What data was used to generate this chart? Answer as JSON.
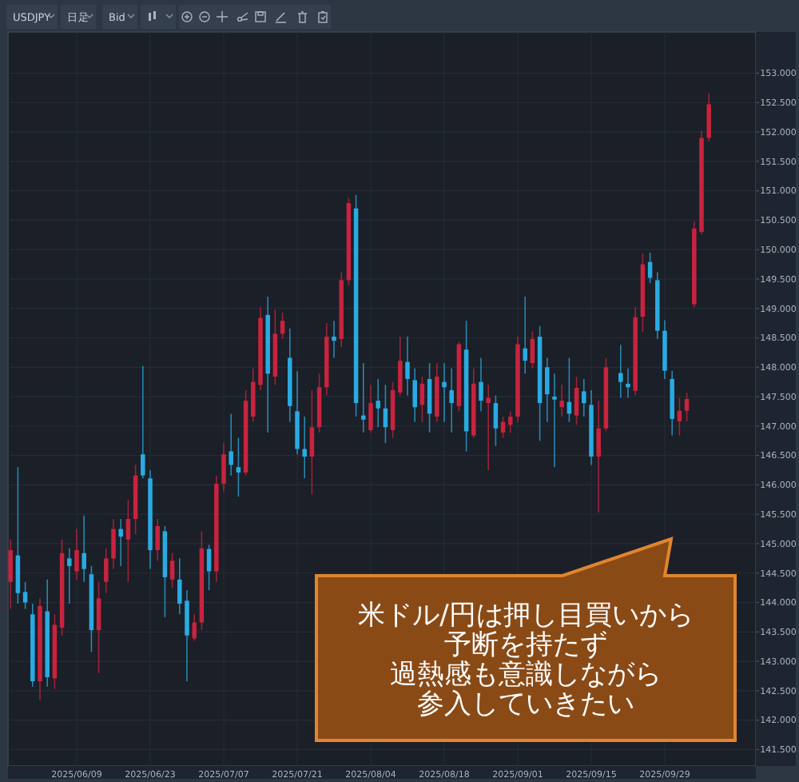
{
  "chart_data": {
    "type": "candlestick",
    "categories": [
      null,
      null,
      null,
      null,
      null,
      null,
      null,
      null,
      null,
      "2025/06/09",
      null,
      null,
      null,
      null,
      null,
      null,
      null,
      null,
      null,
      "2025/06/23",
      null,
      null,
      null,
      null,
      null,
      null,
      null,
      null,
      null,
      "2025/07/07",
      null,
      null,
      null,
      null,
      null,
      null,
      null,
      null,
      null,
      "2025/07/21",
      null,
      null,
      null,
      null,
      null,
      null,
      null,
      null,
      null,
      "2025/08/04",
      null,
      null,
      null,
      null,
      null,
      null,
      null,
      null,
      null,
      "2025/08/18",
      null,
      null,
      null,
      null,
      null,
      null,
      null,
      null,
      null,
      "2025/09/01",
      null,
      null,
      null,
      null,
      null,
      null,
      null,
      null,
      null,
      "2025/09/15",
      null,
      null,
      null,
      null,
      null,
      null,
      null,
      null,
      null,
      "2025/09/29",
      null,
      null,
      null,
      null,
      null,
      null
    ],
    "ohlc": [
      [
        144.35,
        145.07,
        143.89,
        144.89
      ],
      [
        144.8,
        146.3,
        143.98,
        144.16
      ],
      [
        144.18,
        144.35,
        143.89,
        144.0
      ],
      [
        143.8,
        143.98,
        142.57,
        142.66
      ],
      [
        142.66,
        144.07,
        142.35,
        143.94
      ],
      [
        143.85,
        144.39,
        142.57,
        142.73
      ],
      [
        142.71,
        143.8,
        142.53,
        143.62
      ],
      [
        143.57,
        145.07,
        143.44,
        144.84
      ],
      [
        144.75,
        144.92,
        143.98,
        144.62
      ],
      [
        144.53,
        145.25,
        144.39,
        144.89
      ],
      [
        144.84,
        145.48,
        144.35,
        144.57
      ],
      [
        144.48,
        144.62,
        143.16,
        143.53
      ],
      [
        143.53,
        144.35,
        142.8,
        144.07
      ],
      [
        144.35,
        144.92,
        144.16,
        144.75
      ],
      [
        144.75,
        145.42,
        144.57,
        145.25
      ],
      [
        145.25,
        145.42,
        144.62,
        145.12
      ],
      [
        145.07,
        145.75,
        144.35,
        145.42
      ],
      [
        145.42,
        146.34,
        145.16,
        146.16
      ],
      [
        146.52,
        148.02,
        146.11,
        146.16
      ],
      [
        146.11,
        146.25,
        144.57,
        144.89
      ],
      [
        144.89,
        145.42,
        144.71,
        145.3
      ],
      [
        145.21,
        145.3,
        143.75,
        144.43
      ],
      [
        144.39,
        144.84,
        144.25,
        144.71
      ],
      [
        144.39,
        144.75,
        143.8,
        143.98
      ],
      [
        144.03,
        144.21,
        142.66,
        143.44
      ],
      [
        143.39,
        143.8,
        143.35,
        143.66
      ],
      [
        143.66,
        145.21,
        143.53,
        144.92
      ],
      [
        144.91,
        144.98,
        144.21,
        144.53
      ],
      [
        144.53,
        146.16,
        144.35,
        146.02
      ],
      [
        146.02,
        146.71,
        145.89,
        146.52
      ],
      [
        146.57,
        147.21,
        146.16,
        146.34
      ],
      [
        146.3,
        146.8,
        145.8,
        146.21
      ],
      [
        146.21,
        147.61,
        146.16,
        147.43
      ],
      [
        147.16,
        147.98,
        147.07,
        147.75
      ],
      [
        147.7,
        149.02,
        147.61,
        148.84
      ],
      [
        148.89,
        149.2,
        146.89,
        147.89
      ],
      [
        147.84,
        148.98,
        147.7,
        148.57
      ],
      [
        148.57,
        148.93,
        148.48,
        148.79
      ],
      [
        148.16,
        148.66,
        147.07,
        147.34
      ],
      [
        147.25,
        147.93,
        146.52,
        146.61
      ],
      [
        146.61,
        147.16,
        146.11,
        146.48
      ],
      [
        146.48,
        147.61,
        145.84,
        146.98
      ],
      [
        146.98,
        147.89,
        146.89,
        147.66
      ],
      [
        147.66,
        148.75,
        147.52,
        148.52
      ],
      [
        148.52,
        148.79,
        148.16,
        148.45
      ],
      [
        148.48,
        149.61,
        148.34,
        149.48
      ],
      [
        149.48,
        150.88,
        149.39,
        150.79
      ],
      [
        150.7,
        150.93,
        147.16,
        147.39
      ],
      [
        147.18,
        148.07,
        146.89,
        147.11
      ],
      [
        146.93,
        147.7,
        146.89,
        147.39
      ],
      [
        147.43,
        147.8,
        146.98,
        147.3
      ],
      [
        147.3,
        147.7,
        146.71,
        146.98
      ],
      [
        146.93,
        147.75,
        146.8,
        147.61
      ],
      [
        147.57,
        148.52,
        147.52,
        148.11
      ],
      [
        148.09,
        148.52,
        147.52,
        147.8
      ],
      [
        147.78,
        147.98,
        147.07,
        147.32
      ],
      [
        147.36,
        147.84,
        147.07,
        147.72
      ],
      [
        147.8,
        148.07,
        146.89,
        147.21
      ],
      [
        147.16,
        148.07,
        147.07,
        147.84
      ],
      [
        147.75,
        148.07,
        147.07,
        147.66
      ],
      [
        147.61,
        147.98,
        146.89,
        147.39
      ],
      [
        147.34,
        148.43,
        147.25,
        148.39
      ],
      [
        148.3,
        148.79,
        146.57,
        146.91
      ],
      [
        146.84,
        147.98,
        146.8,
        147.72
      ],
      [
        147.75,
        148.16,
        147.25,
        147.43
      ],
      [
        147.39,
        147.7,
        146.25,
        147.48
      ],
      [
        147.39,
        147.52,
        146.66,
        146.96
      ],
      [
        146.89,
        147.16,
        146.8,
        147.07
      ],
      [
        147.02,
        147.25,
        146.89,
        147.16
      ],
      [
        147.16,
        148.52,
        147.07,
        148.39
      ],
      [
        148.32,
        149.2,
        147.89,
        148.11
      ],
      [
        148.07,
        148.61,
        147.98,
        148.48
      ],
      [
        148.52,
        148.7,
        146.75,
        147.39
      ],
      [
        148.0,
        148.16,
        147.07,
        147.54
      ],
      [
        147.5,
        147.89,
        146.3,
        147.45
      ],
      [
        147.32,
        147.7,
        147.16,
        147.43
      ],
      [
        147.41,
        148.16,
        147.07,
        147.21
      ],
      [
        147.18,
        147.84,
        147.02,
        147.65
      ],
      [
        147.59,
        147.8,
        147.16,
        147.39
      ],
      [
        147.36,
        147.61,
        146.34,
        146.48
      ],
      [
        146.48,
        147.43,
        145.53,
        146.96
      ],
      [
        146.96,
        148.16,
        146.91,
        148.0
      ],
      null,
      [
        147.9,
        148.38,
        147.48,
        147.75
      ],
      [
        147.72,
        147.98,
        147.48,
        147.66
      ],
      [
        147.6,
        149.02,
        147.52,
        148.85
      ],
      [
        148.86,
        149.93,
        148.6,
        149.75
      ],
      [
        149.79,
        149.95,
        149.43,
        149.52
      ],
      [
        149.48,
        149.61,
        148.48,
        148.62
      ],
      [
        148.62,
        148.8,
        147.8,
        147.94
      ],
      [
        147.8,
        147.94,
        146.84,
        147.12
      ],
      [
        147.08,
        147.48,
        146.84,
        147.26
      ],
      [
        147.26,
        147.57,
        147.08,
        147.46
      ],
      [
        149.07,
        150.48,
        149.02,
        150.36
      ],
      [
        150.3,
        152.02,
        150.26,
        151.9
      ],
      [
        151.9,
        152.66,
        151.84,
        152.47
      ]
    ],
    "colors": [
      "#c8233f",
      "#2aaae2",
      "#2aaae2",
      "#2aaae2",
      "#c8233f",
      "#2aaae2",
      "#c8233f",
      "#c8233f",
      "#2aaae2",
      "#c8233f",
      "#2aaae2",
      "#2aaae2",
      "#c8233f",
      "#c8233f",
      "#c8233f",
      "#2aaae2",
      "#c8233f",
      "#c8233f",
      "#2aaae2",
      "#2aaae2",
      "#c8233f",
      "#2aaae2",
      "#c8233f",
      "#2aaae2",
      "#2aaae2",
      "#c8233f",
      "#c8233f",
      "#2aaae2",
      "#c8233f",
      "#c8233f",
      "#2aaae2",
      "#2aaae2",
      "#c8233f",
      "#c8233f",
      "#c8233f",
      "#2aaae2",
      "#c8233f",
      "#c8233f",
      "#2aaae2",
      "#2aaae2",
      "#2aaae2",
      "#c8233f",
      "#c8233f",
      "#c8233f",
      "#2aaae2",
      "#c8233f",
      "#c8233f",
      "#2aaae2",
      "#2aaae2",
      "#c8233f",
      "#2aaae2",
      "#2aaae2",
      "#c8233f",
      "#c8233f",
      "#2aaae2",
      "#2aaae2",
      "#c8233f",
      "#2aaae2",
      "#c8233f",
      "#2aaae2",
      "#2aaae2",
      "#c8233f",
      "#2aaae2",
      "#c8233f",
      "#2aaae2",
      "#c8233f",
      "#2aaae2",
      "#c8233f",
      "#c8233f",
      "#c8233f",
      "#2aaae2",
      "#c8233f",
      "#2aaae2",
      "#2aaae2",
      "#2aaae2",
      "#c8233f",
      "#2aaae2",
      "#c8233f",
      "#2aaae2",
      "#2aaae2",
      "#c8233f",
      "#c8233f",
      null,
      "#2aaae2",
      "#2aaae2",
      "#c8233f",
      "#c8233f",
      "#2aaae2",
      "#2aaae2",
      "#2aaae2",
      "#2aaae2",
      "#c8233f",
      "#c8233f",
      "#c8233f",
      "#c8233f",
      "#c8233f"
    ],
    "ylim": [
      141.22,
      153.7
    ],
    "yticks": [
      {
        "value": 141.5,
        "label": "141.500"
      },
      {
        "value": 142,
        "label": "142.000"
      },
      {
        "value": 142.5,
        "label": "142.500"
      },
      {
        "value": 143,
        "label": "143.000"
      },
      {
        "value": 143.5,
        "label": "143.500"
      },
      {
        "value": 144,
        "label": "144.000"
      },
      {
        "value": 144.5,
        "label": "144.500"
      },
      {
        "value": 145,
        "label": "145.000"
      },
      {
        "value": 145.5,
        "label": "145.500"
      },
      {
        "value": 146,
        "label": "146.000"
      },
      {
        "value": 146.5,
        "label": "146.500"
      },
      {
        "value": 147,
        "label": "147.000"
      },
      {
        "value": 147.5,
        "label": "147.500"
      },
      {
        "value": 148,
        "label": "148.000"
      },
      {
        "value": 148.5,
        "label": "148.500"
      },
      {
        "value": 149,
        "label": "149.000"
      },
      {
        "value": 149.5,
        "label": "149.500"
      },
      {
        "value": 150,
        "label": "150.000"
      },
      {
        "value": 150.5,
        "label": "150.500"
      },
      {
        "value": 151,
        "label": "151.000"
      },
      {
        "value": 151.5,
        "label": "151.500"
      },
      {
        "value": 152,
        "label": "152.000"
      },
      {
        "value": 152.5,
        "label": "152.500"
      },
      {
        "value": 153,
        "label": "153.000"
      }
    ],
    "grid": true,
    "annotations": [
      "USDJPY",
      "日足",
      "Bid",
      "米ドル/円は押し目買いから",
      "予断を持たず",
      "過熱感も意識しながら",
      "参入していきたい"
    ]
  }
}
